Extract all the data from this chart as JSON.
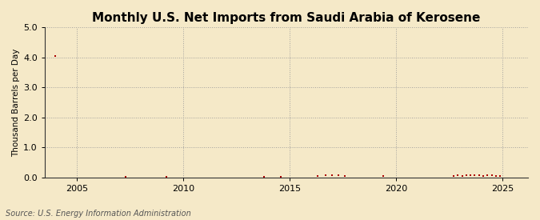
{
  "title": "Monthly U.S. Net Imports from Saudi Arabia of Kerosene",
  "ylabel": "Thousand Barrels per Day",
  "source": "Source: U.S. Energy Information Administration",
  "background_color": "#f5e9c8",
  "plot_background_color": "#f5e9c8",
  "marker_color": "#aa0000",
  "xlim": [
    2003.5,
    2026.2
  ],
  "ylim": [
    0.0,
    5.0
  ],
  "yticks": [
    0.0,
    1.0,
    2.0,
    3.0,
    4.0,
    5.0
  ],
  "xticks": [
    2005,
    2010,
    2015,
    2020,
    2025
  ],
  "grid_color": "#999999",
  "title_fontsize": 11,
  "label_fontsize": 7.5,
  "tick_fontsize": 8,
  "source_fontsize": 7,
  "data_points": [
    [
      2004.0,
      4.05
    ],
    [
      2007.3,
      0.03
    ],
    [
      2009.2,
      0.03
    ],
    [
      2013.8,
      0.03
    ],
    [
      2014.6,
      0.03
    ],
    [
      2016.3,
      0.05
    ],
    [
      2016.7,
      0.07
    ],
    [
      2017.0,
      0.08
    ],
    [
      2017.3,
      0.06
    ],
    [
      2017.6,
      0.05
    ],
    [
      2019.4,
      0.04
    ],
    [
      2022.7,
      0.05
    ],
    [
      2022.9,
      0.06
    ],
    [
      2023.1,
      0.05
    ],
    [
      2023.3,
      0.06
    ],
    [
      2023.5,
      0.07
    ],
    [
      2023.7,
      0.08
    ],
    [
      2023.9,
      0.06
    ],
    [
      2024.1,
      0.05
    ],
    [
      2024.3,
      0.07
    ],
    [
      2024.5,
      0.06
    ],
    [
      2024.7,
      0.05
    ],
    [
      2024.9,
      0.04
    ]
  ]
}
